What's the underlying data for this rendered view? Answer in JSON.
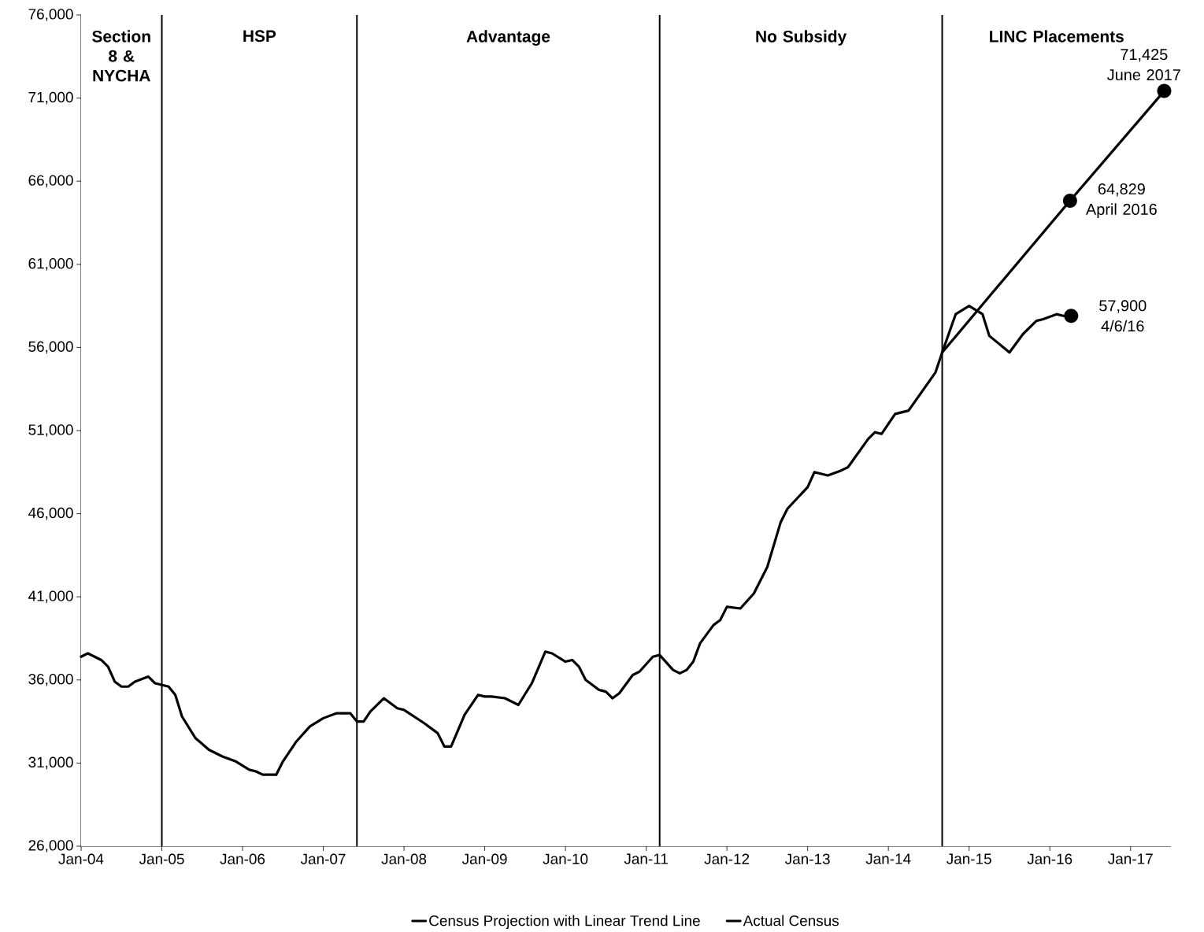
{
  "chart_data": {
    "type": "line",
    "x": [
      "2004-01",
      "2004-02",
      "2004-04",
      "2004-05",
      "2004-06",
      "2004-07",
      "2004-08",
      "2004-09",
      "2004-11",
      "2004-12",
      "2005-02",
      "2005-03",
      "2005-04",
      "2005-06",
      "2005-08",
      "2005-10",
      "2005-12",
      "2006-02",
      "2006-03",
      "2006-04",
      "2006-06",
      "2006-07",
      "2006-09",
      "2006-11",
      "2007-01",
      "2007-03",
      "2007-05",
      "2007-06",
      "2007-07",
      "2007-08",
      "2007-10",
      "2007-12",
      "2008-01",
      "2008-04",
      "2008-06",
      "2008-07",
      "2008-08",
      "2008-10",
      "2008-12",
      "2009-01",
      "2009-02",
      "2009-04",
      "2009-06",
      "2009-08",
      "2009-10",
      "2009-11",
      "2010-01",
      "2010-02",
      "2010-03",
      "2010-04",
      "2010-06",
      "2010-07",
      "2010-08",
      "2010-09",
      "2010-11",
      "2010-12",
      "2011-02",
      "2011-03",
      "2011-05",
      "2011-06",
      "2011-07",
      "2011-08",
      "2011-09",
      "2011-11",
      "2011-12",
      "2012-01",
      "2012-03",
      "2012-05",
      "2012-07",
      "2012-09",
      "2012-10",
      "2013-01",
      "2013-02",
      "2013-04",
      "2013-06",
      "2013-07",
      "2013-10",
      "2013-11",
      "2013-12",
      "2014-02",
      "2014-04",
      "2014-08",
      "2014-09",
      "2014-11",
      "2015-01",
      "2015-03",
      "2015-04",
      "2015-07",
      "2015-09",
      "2015-11",
      "2015-12",
      "2016-02",
      "2016-03",
      "2016-04-06"
    ],
    "series": [
      {
        "name": "Census Projection with Linear Trend Line",
        "color": "#000000",
        "x": [
          "2014-09",
          "2016-04",
          "2017-06"
        ],
        "values": [
          55700,
          64829,
          71425
        ]
      },
      {
        "name": "Actual Census",
        "color": "#000000",
        "values": [
          37400,
          37600,
          37200,
          36800,
          35900,
          35600,
          35600,
          35900,
          36200,
          35800,
          35600,
          35100,
          33800,
          32500,
          31800,
          31400,
          31100,
          30600,
          30500,
          30300,
          30300,
          31100,
          32300,
          33200,
          33700,
          34000,
          34000,
          33500,
          33500,
          34100,
          34900,
          34300,
          34200,
          33400,
          32800,
          32000,
          32000,
          33900,
          35100,
          35000,
          35000,
          34900,
          34500,
          35800,
          37700,
          37600,
          37100,
          37200,
          36800,
          36000,
          35400,
          35300,
          34900,
          35200,
          36300,
          36500,
          37400,
          37500,
          36600,
          36400,
          36600,
          37100,
          38200,
          39300,
          39600,
          40400,
          40300,
          41200,
          42800,
          45500,
          46300,
          47600,
          48500,
          48300,
          48600,
          48800,
          50500,
          50900,
          50800,
          52000,
          52200,
          54500,
          55700,
          58000,
          58500,
          58000,
          56700,
          55700,
          56800,
          57600,
          57700,
          58000,
          57900,
          57900
        ]
      }
    ],
    "xlim": [
      "2004-01",
      "2017-07"
    ],
    "xticks": [
      {
        "value": "2004-01",
        "label": "Jan-04"
      },
      {
        "value": "2005-01",
        "label": "Jan-05"
      },
      {
        "value": "2006-01",
        "label": "Jan-06"
      },
      {
        "value": "2007-01",
        "label": "Jan-07"
      },
      {
        "value": "2008-01",
        "label": "Jan-08"
      },
      {
        "value": "2009-01",
        "label": "Jan-09"
      },
      {
        "value": "2010-01",
        "label": "Jan-10"
      },
      {
        "value": "2011-01",
        "label": "Jan-11"
      },
      {
        "value": "2012-01",
        "label": "Jan-12"
      },
      {
        "value": "2013-01",
        "label": "Jan-13"
      },
      {
        "value": "2014-01",
        "label": "Jan-14"
      },
      {
        "value": "2015-01",
        "label": "Jan-15"
      },
      {
        "value": "2016-01",
        "label": "Jan-16"
      },
      {
        "value": "2017-01",
        "label": "Jan-17"
      }
    ],
    "ylim": [
      26000,
      76000
    ],
    "yticks": [
      {
        "value": 26000,
        "label": "26,000"
      },
      {
        "value": 31000,
        "label": "31,000"
      },
      {
        "value": 36000,
        "label": "36,000"
      },
      {
        "value": 41000,
        "label": "41,000"
      },
      {
        "value": 46000,
        "label": "46,000"
      },
      {
        "value": 51000,
        "label": "51,000"
      },
      {
        "value": 56000,
        "label": "56,000"
      },
      {
        "value": 61000,
        "label": "61,000"
      },
      {
        "value": 66000,
        "label": "66,000"
      },
      {
        "value": 71000,
        "label": "71,000"
      },
      {
        "value": 76000,
        "label": "76,000"
      }
    ],
    "ref_lines": [
      {
        "axis": "x",
        "value": "2005-01"
      },
      {
        "axis": "x",
        "value": "2007-06"
      },
      {
        "axis": "x",
        "value": "2011-03"
      },
      {
        "axis": "x",
        "value": "2014-09"
      }
    ],
    "bands": [
      {
        "axis": "x",
        "from": "2004-01",
        "to": "2005-01",
        "label": "Section 8 & NYCHA",
        "color": "#ffffff"
      },
      {
        "axis": "x",
        "from": "2005-01",
        "to": "2007-06",
        "label": "HSP",
        "color": "#ffffff"
      },
      {
        "axis": "x",
        "from": "2007-06",
        "to": "2011-03",
        "label": "Advantage",
        "color": "#ffffff"
      },
      {
        "axis": "x",
        "from": "2011-03",
        "to": "2014-09",
        "label": "No Subsidy",
        "color": "#ffffff"
      },
      {
        "axis": "x",
        "from": "2014-09",
        "to": "2017-07",
        "label": "LINC Placements",
        "color": "#ffffff"
      }
    ],
    "annotations": [
      {
        "text": "71,425 June 2017",
        "x": "2017-06",
        "y": 71425
      },
      {
        "text": "64,829 April 2016",
        "x": "2016-04",
        "y": 64829
      },
      {
        "text": "57,900 4/6/16",
        "x": "2016-04-06",
        "y": 57900
      }
    ],
    "legend": "bottom",
    "grid": false,
    "line_style": "solid"
  }
}
